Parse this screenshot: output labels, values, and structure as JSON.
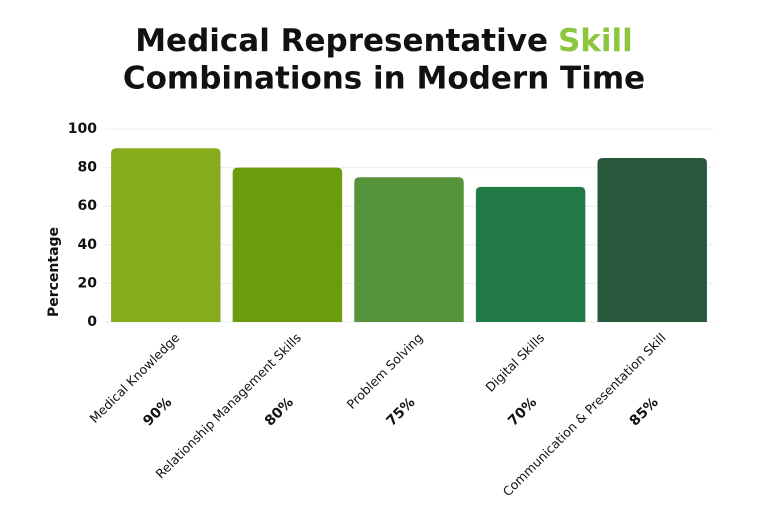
{
  "chart_data": {
    "type": "bar",
    "title_parts": [
      "Medical Representative",
      "Skill",
      "Combinations in Modern Time"
    ],
    "title_highlight_color": "#8cc63f",
    "y_label": "Percentage",
    "categories": [
      "Medical Knowledge",
      "Relationship Management Skills",
      "Problem Solving",
      "Digital Skills",
      "Communication & Presentation Skill"
    ],
    "values": [
      90,
      80,
      75,
      70,
      85
    ],
    "value_labels": [
      "90%",
      "80%",
      "75%",
      "70%",
      "85%"
    ],
    "colors": [
      "#86ab1c",
      "#6c9b0b",
      "#55923a",
      "#217a45",
      "#27583c"
    ],
    "ylim": [
      0,
      100
    ],
    "yticks": [
      0,
      20,
      40,
      60,
      80,
      100
    ],
    "grid": true
  }
}
